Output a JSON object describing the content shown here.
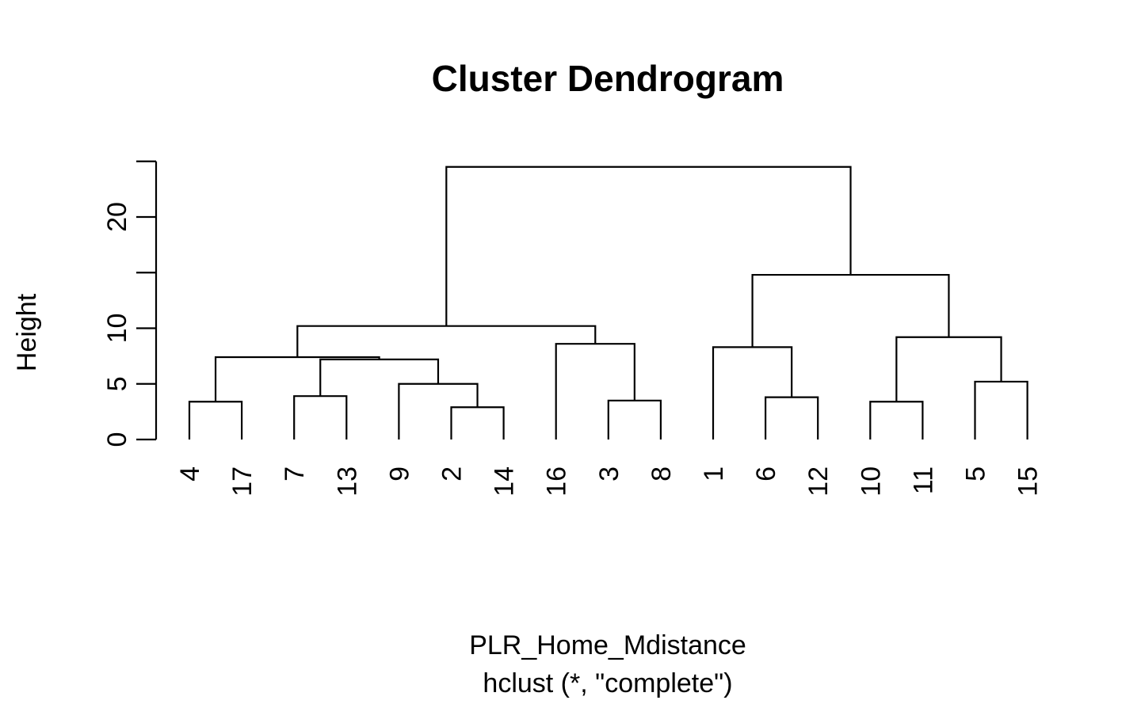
{
  "chart_data": {
    "type": "dendrogram",
    "title": "Cluster Dendrogram",
    "xlabel": "PLR_Home_Mdistance",
    "sublabel": "hclust (*, \"complete\")",
    "ylabel": "Height",
    "ylim": [
      0,
      25
    ],
    "yticks": [
      0,
      5,
      10,
      15,
      20,
      25
    ],
    "ytick_labels": [
      "0",
      "5",
      "10",
      "",
      "20",
      ""
    ],
    "leaf_order": [
      "4",
      "17",
      "7",
      "13",
      "9",
      "2",
      "14",
      "16",
      "3",
      "8",
      "1",
      "6",
      "12",
      "10",
      "11",
      "5",
      "15"
    ],
    "merges": [
      {
        "left": "4",
        "right": "17",
        "height": 3.4
      },
      {
        "left": "7",
        "right": "13",
        "height": 3.9
      },
      {
        "left": "2",
        "right": "14",
        "height": 2.9
      },
      {
        "left": "9",
        "right": "2+14",
        "height": 5.0
      },
      {
        "left": "7+13",
        "right": "9+2+14",
        "height": 7.2
      },
      {
        "left": "4+17",
        "right": "7+13+9+2+14",
        "height": 7.4
      },
      {
        "left": "3",
        "right": "8",
        "height": 3.5
      },
      {
        "left": "16",
        "right": "3+8",
        "height": 8.6
      },
      {
        "left": "4+17+7+13+9+2+14",
        "right": "16+3+8",
        "height": 10.2
      },
      {
        "left": "6",
        "right": "12",
        "height": 3.8
      },
      {
        "left": "1",
        "right": "6+12",
        "height": 8.3
      },
      {
        "left": "10",
        "right": "11",
        "height": 3.4
      },
      {
        "left": "5",
        "right": "15",
        "height": 5.2
      },
      {
        "left": "10+11",
        "right": "5+15",
        "height": 9.2
      },
      {
        "left": "1+6+12",
        "right": "10+11+5+15",
        "height": 14.8
      },
      {
        "left": "4+17+7+13+9+2+14+16+3+8",
        "right": "1+6+12+10+11+5+15",
        "height": 24.5
      }
    ]
  }
}
